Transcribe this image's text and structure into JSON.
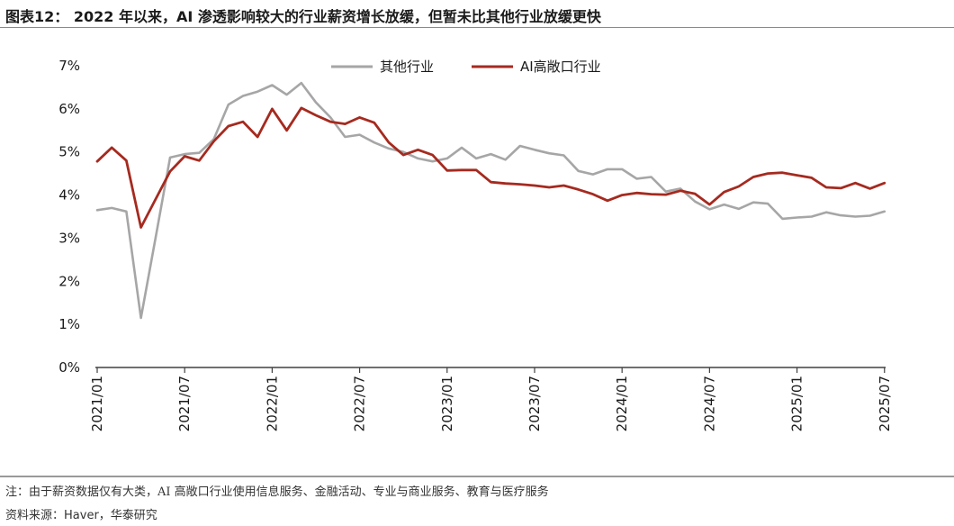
{
  "page": {
    "title": "图表12： 2022 年以来，AI 渗透影响较大的行业薪资增长放缓，但暂未比其他行业放缓更快",
    "note": "注：由于薪资数据仅有大类，AI 高敞口行业使用信息服务、金融活动、专业与商业服务、教育与医疗服务",
    "source_label": "资料来源：",
    "source_value": "Haver，华泰研究"
  },
  "chart_data": {
    "type": "line",
    "x": [
      "2021/01",
      "2021/02",
      "2021/03",
      "2021/04",
      "2021/05",
      "2021/06",
      "2021/07",
      "2021/08",
      "2021/09",
      "2021/10",
      "2021/11",
      "2021/12",
      "2022/01",
      "2022/02",
      "2022/03",
      "2022/04",
      "2022/05",
      "2022/06",
      "2022/07",
      "2022/08",
      "2022/09",
      "2022/10",
      "2022/11",
      "2022/12",
      "2023/01",
      "2023/02",
      "2023/03",
      "2023/04",
      "2023/05",
      "2023/06",
      "2023/07",
      "2023/08",
      "2023/09",
      "2023/10",
      "2023/11",
      "2023/12",
      "2024/01",
      "2024/02",
      "2024/03",
      "2024/04",
      "2024/05",
      "2024/06",
      "2024/07",
      "2024/08",
      "2024/09",
      "2024/10",
      "2024/11",
      "2024/12",
      "2025/01",
      "2025/02",
      "2025/03",
      "2025/04",
      "2025/05",
      "2025/06",
      "2025/07"
    ],
    "xticks": [
      "2021/01",
      "2021/07",
      "2022/01",
      "2022/07",
      "2023/01",
      "2023/07",
      "2024/01",
      "2024/07",
      "2025/01",
      "2025/07"
    ],
    "yticks": [
      "0%",
      "1%",
      "2%",
      "3%",
      "4%",
      "5%",
      "6%",
      "7%"
    ],
    "ylim": [
      0,
      7
    ],
    "legend_position": "top-center",
    "grid": false,
    "series": [
      {
        "name": "其他行业",
        "color": "#a6a6a6",
        "values": [
          3.65,
          3.7,
          3.62,
          1.15,
          3.0,
          4.87,
          4.95,
          4.98,
          5.3,
          6.1,
          6.3,
          6.4,
          6.55,
          6.33,
          6.6,
          6.15,
          5.8,
          5.35,
          5.4,
          5.22,
          5.08,
          5.0,
          4.85,
          4.78,
          4.85,
          5.1,
          4.85,
          4.95,
          4.82,
          5.14,
          5.05,
          4.97,
          4.92,
          4.56,
          4.48,
          4.6,
          4.6,
          4.38,
          4.42,
          4.08,
          4.15,
          3.85,
          3.67,
          3.78,
          3.68,
          3.83,
          3.8,
          3.45,
          3.48,
          3.5,
          3.6,
          3.53,
          3.5,
          3.52,
          3.62
        ]
      },
      {
        "name": "AI高敞口行业",
        "color": "#a52a1f",
        "values": [
          4.78,
          5.1,
          4.8,
          3.25,
          3.9,
          4.55,
          4.9,
          4.8,
          5.25,
          5.6,
          5.7,
          5.35,
          6.0,
          5.5,
          6.02,
          5.85,
          5.7,
          5.65,
          5.8,
          5.68,
          5.22,
          4.93,
          5.05,
          4.93,
          4.57,
          4.58,
          4.58,
          4.3,
          4.27,
          4.25,
          4.22,
          4.18,
          4.22,
          4.13,
          4.02,
          3.87,
          4.0,
          4.05,
          4.02,
          4.01,
          4.1,
          4.03,
          3.78,
          4.07,
          4.2,
          4.42,
          4.5,
          4.52,
          4.46,
          4.4,
          4.18,
          4.16,
          4.28,
          4.15,
          4.28
        ]
      }
    ]
  }
}
